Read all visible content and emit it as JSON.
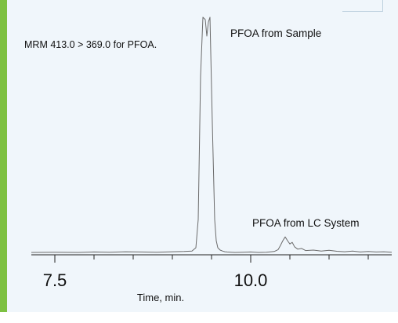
{
  "chart_data": {
    "type": "line",
    "title": "",
    "xlabel": "Time, min.",
    "ylabel": "",
    "xlim": [
      7.2,
      11.8
    ],
    "ylim": [
      0,
      100
    ],
    "x_ticks": [
      7.5,
      10.0
    ],
    "x_tick_labels": [
      "7.5",
      "10.0"
    ],
    "grid": false,
    "series": [
      {
        "x": [
          7.2,
          7.5,
          7.8,
          8.0,
          8.2,
          8.4,
          8.6,
          8.8,
          9.0,
          9.15,
          9.25,
          9.3,
          9.33,
          9.36,
          9.39,
          9.42,
          9.44,
          9.46,
          9.48,
          9.51,
          9.54,
          9.56,
          9.58,
          9.61,
          9.64,
          9.67,
          9.7,
          9.75,
          9.8,
          9.9,
          10.0,
          10.1,
          10.2,
          10.3,
          10.35,
          10.38,
          10.41,
          10.44,
          10.47,
          10.5,
          10.53,
          10.56,
          10.6,
          10.65,
          10.7,
          10.8,
          10.9,
          11.0,
          11.1,
          11.2,
          11.3,
          11.4,
          11.5,
          11.6,
          11.7,
          11.8
        ],
        "y": [
          0.0,
          0.1,
          0.0,
          0.2,
          0.1,
          0.3,
          0.2,
          0.1,
          0.3,
          0.4,
          0.6,
          2.0,
          14.0,
          75.0,
          100.0,
          99.0,
          92.0,
          98.0,
          100.0,
          55.0,
          14.0,
          5.0,
          2.0,
          1.0,
          0.6,
          0.3,
          0.2,
          0.1,
          0.0,
          0.1,
          0.2,
          0.0,
          0.1,
          0.4,
          1.2,
          3.0,
          5.0,
          6.6,
          5.0,
          3.6,
          4.3,
          2.4,
          1.4,
          1.7,
          0.8,
          1.0,
          0.6,
          0.9,
          0.5,
          0.3,
          0.6,
          0.2,
          0.4,
          0.2,
          0.3,
          0.1
        ],
        "color": "#6b6b6b"
      }
    ],
    "annotations": [
      {
        "text": "MRM 413.0 > 369.0 for PFOA."
      },
      {
        "text": "PFOA from Sample"
      },
      {
        "text": "PFOA from LC System"
      }
    ]
  },
  "colors": {
    "panel_background": "#f0f6fb",
    "accent": "#7dc142",
    "axis": "#222222"
  }
}
